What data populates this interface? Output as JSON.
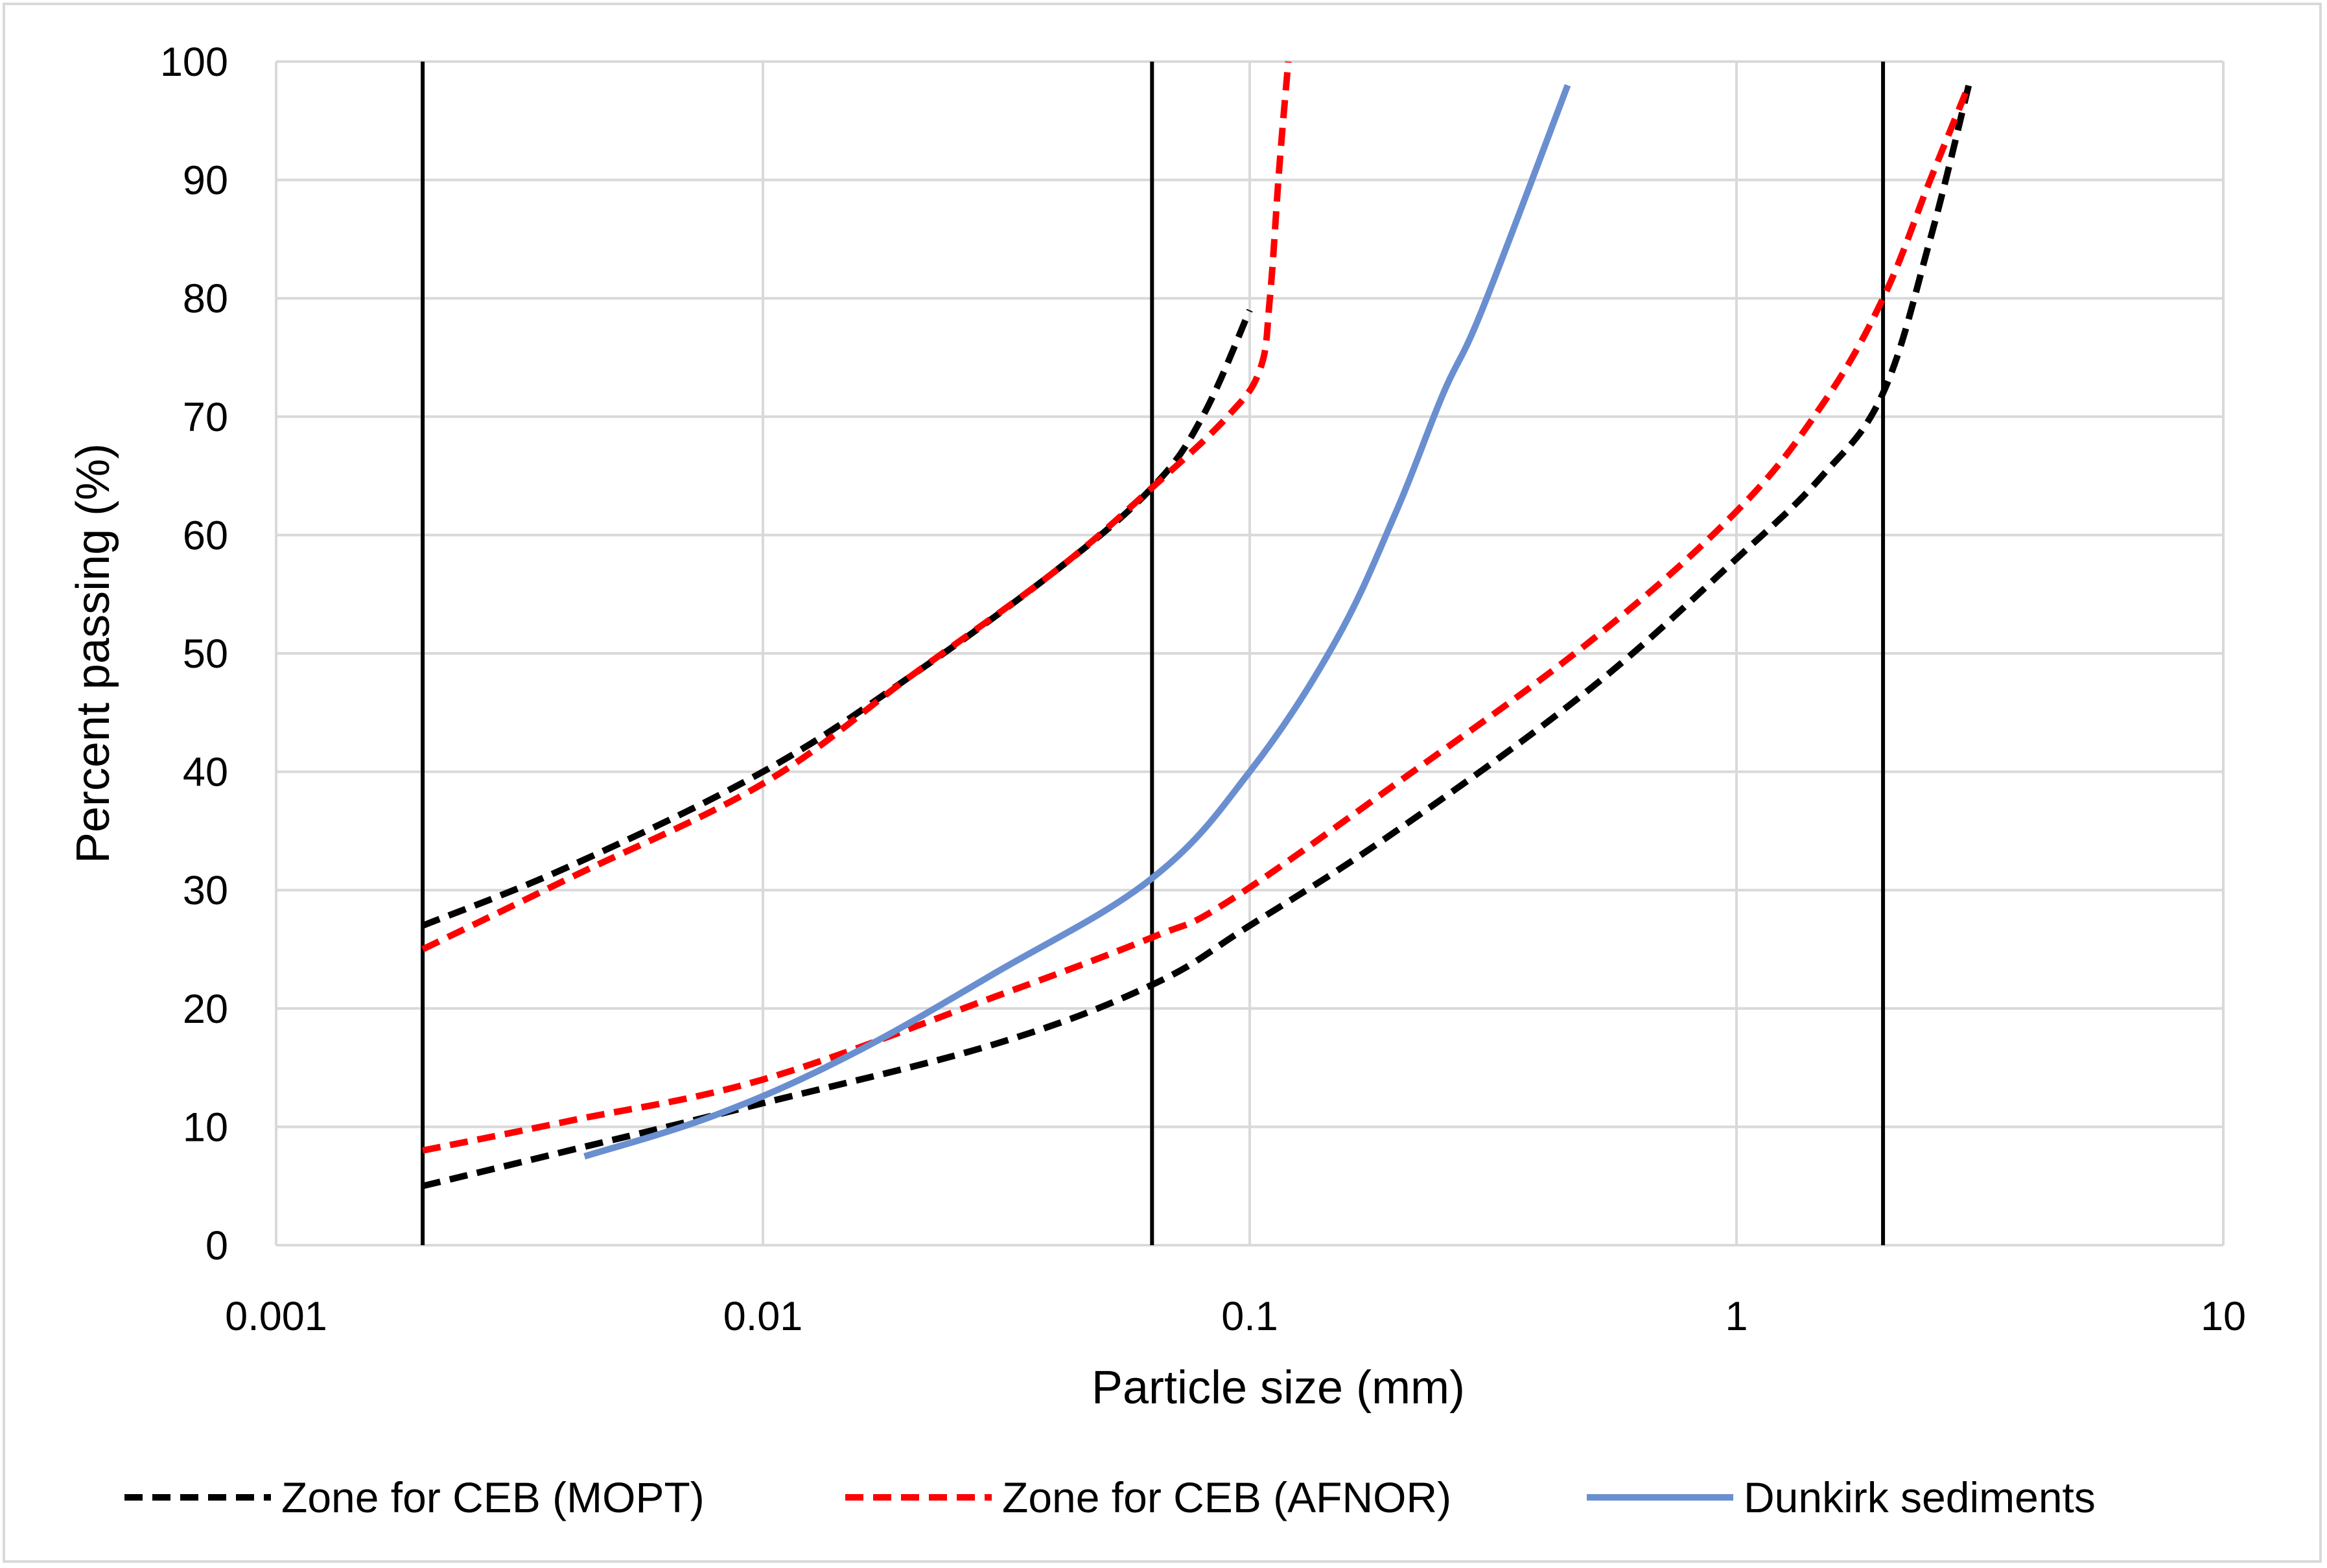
{
  "chart_data": {
    "type": "line",
    "title": "",
    "xlabel": "Particle size (mm)",
    "ylabel": "Percent passing (%)",
    "xscale": "log",
    "xlim": [
      0.001,
      10
    ],
    "ylim": [
      0,
      100
    ],
    "x_ticks": [
      0.001,
      0.01,
      0.1,
      1,
      10
    ],
    "x_tick_labels": [
      "0.001",
      "0.01",
      "0.1",
      "1",
      "10"
    ],
    "y_ticks": [
      0,
      10,
      20,
      30,
      40,
      50,
      60,
      70,
      80,
      90,
      100
    ],
    "y_tick_labels": [
      "0",
      "10",
      "20",
      "30",
      "40",
      "50",
      "60",
      "70",
      "80",
      "90",
      "100"
    ],
    "grid": true,
    "legend_position": "bottom",
    "reference_lines_x": [
      0.002,
      0.063,
      2
    ],
    "series": [
      {
        "name": "Zone for CEB (MOPT)",
        "group": "mopt",
        "color": "#000000",
        "dash": true,
        "x": [
          0.002,
          0.004,
          0.01,
          0.02,
          0.04,
          0.063,
          0.08,
          0.1
        ],
        "y": [
          27,
          32,
          40,
          48,
          57,
          64,
          70,
          79
        ]
      },
      {
        "name": "Zone for CEB (MOPT)",
        "group": "mopt",
        "color": "#000000",
        "dash": true,
        "x": [
          0.002,
          0.004,
          0.01,
          0.03,
          0.063,
          0.1,
          0.2,
          0.5,
          1,
          1.5,
          2,
          2.5,
          3
        ],
        "y": [
          5,
          8,
          12,
          17,
          22,
          27,
          35,
          47,
          58,
          65,
          72,
          85,
          98
        ]
      },
      {
        "name": "Zone for CEB (AFNOR)",
        "group": "afnor",
        "color": "#ff0000",
        "dash": true,
        "x": [
          0.002,
          0.004,
          0.01,
          0.02,
          0.04,
          0.063,
          0.09,
          0.105,
          0.11,
          0.115,
          0.12
        ],
        "y": [
          25,
          31,
          39,
          48,
          57,
          64,
          70,
          74,
          80,
          91,
          100
        ]
      },
      {
        "name": "Zone for CEB (AFNOR)",
        "group": "afnor",
        "color": "#ff0000",
        "dash": true,
        "x": [
          0.002,
          0.004,
          0.01,
          0.03,
          0.063,
          0.09,
          0.2,
          0.5,
          1,
          1.5,
          2,
          2.5,
          3
        ],
        "y": [
          8,
          10.5,
          14,
          21,
          26,
          29,
          39,
          51,
          62,
          71,
          80,
          90,
          98
        ]
      },
      {
        "name": "Dunkirk sediments",
        "group": "dunkirk",
        "color": "#6a8fd0",
        "dash": false,
        "x": [
          0.0043,
          0.008,
          0.015,
          0.03,
          0.063,
          0.1,
          0.15,
          0.2,
          0.25,
          0.3,
          0.45
        ],
        "y": [
          7.5,
          11,
          16,
          23,
          31,
          40,
          51,
          62,
          72,
          79,
          98
        ]
      }
    ],
    "legend": [
      {
        "label": "Zone for CEB (MOPT)",
        "color": "#000000",
        "dash": true
      },
      {
        "label": "Zone for CEB (AFNOR)",
        "color": "#ff0000",
        "dash": true
      },
      {
        "label": "Dunkirk sediments",
        "color": "#6a8fd0",
        "dash": false
      }
    ]
  }
}
